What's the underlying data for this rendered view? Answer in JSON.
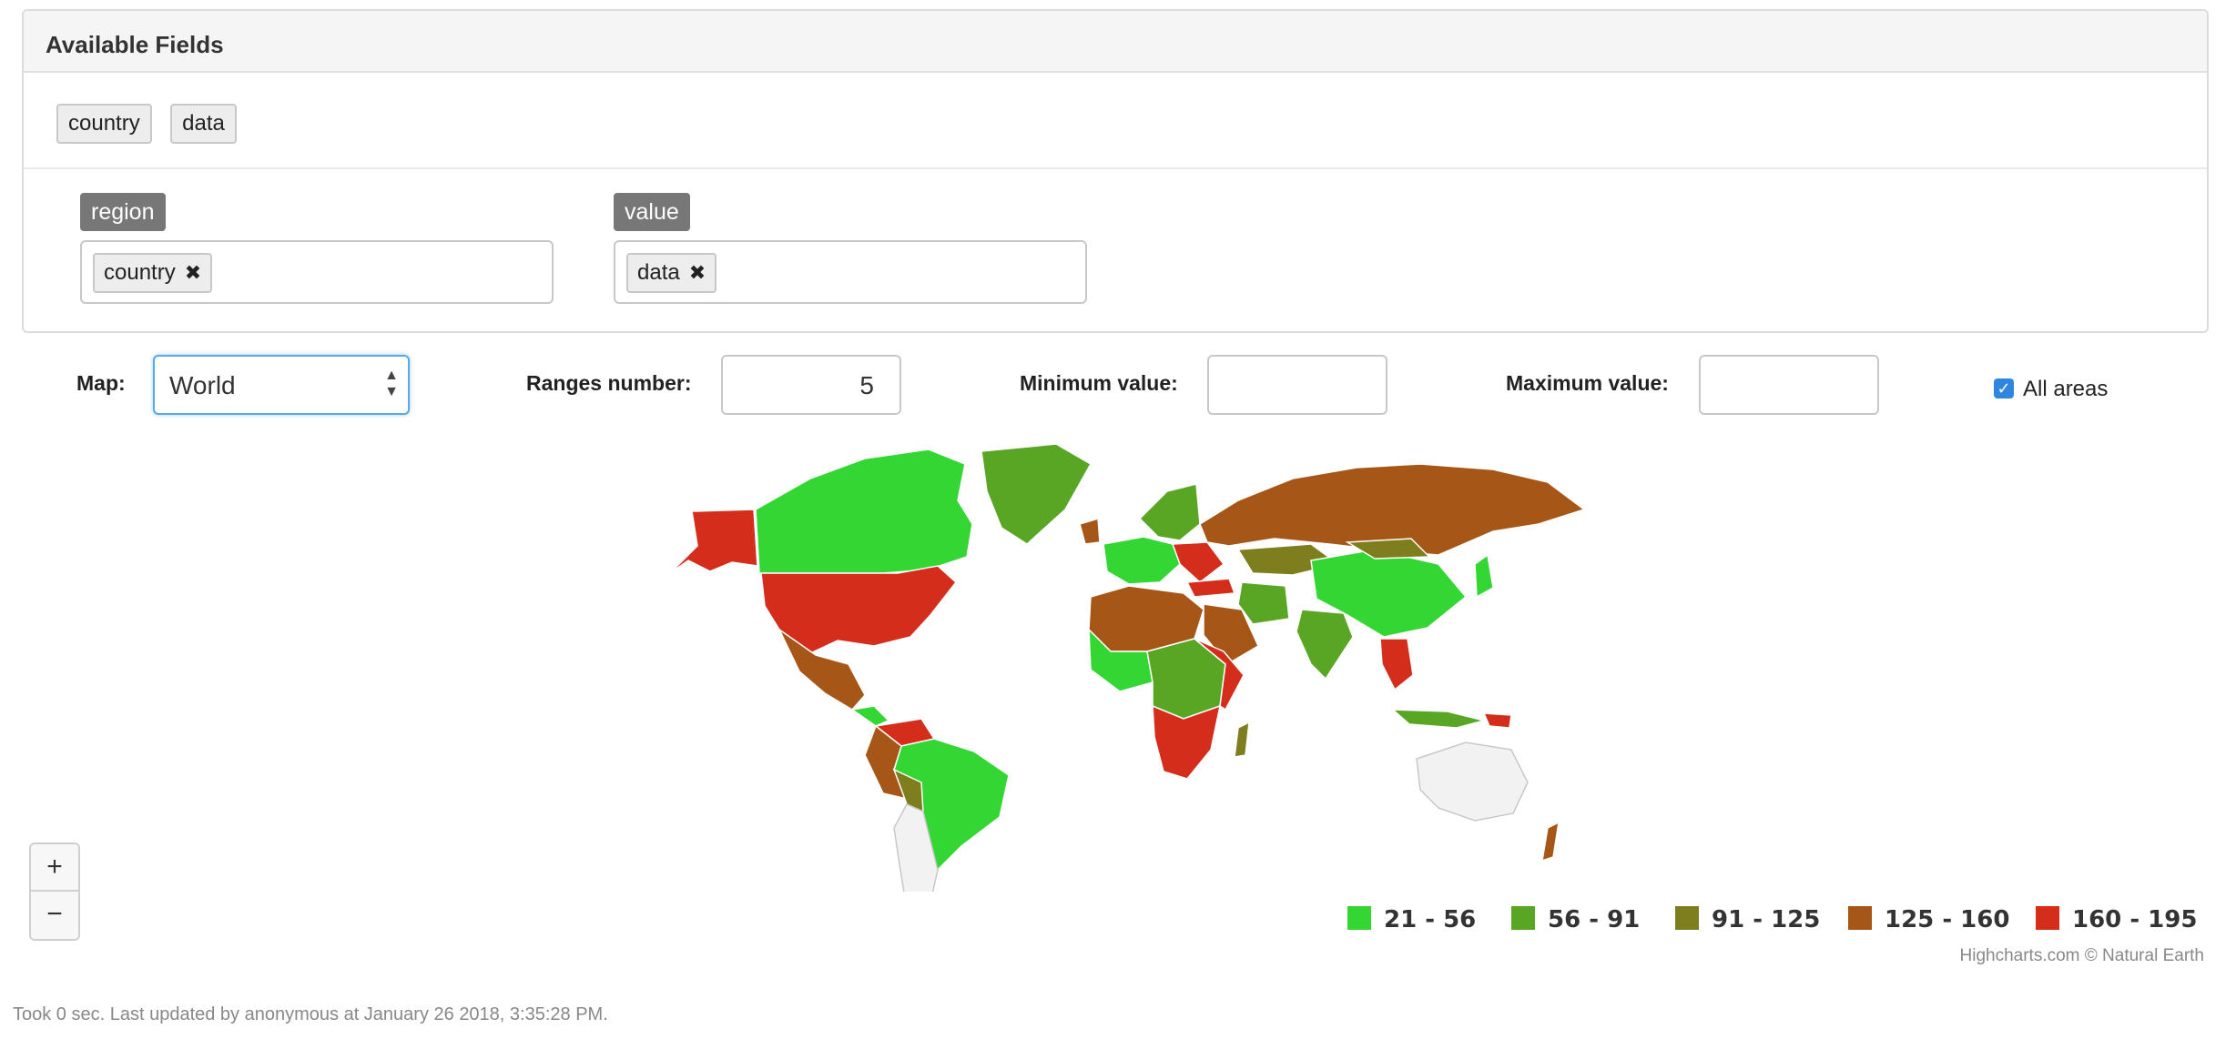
{
  "panel": {
    "title": "Available Fields",
    "fields": [
      "country",
      "data"
    ],
    "region": {
      "label": "region",
      "chip": "country"
    },
    "value": {
      "label": "value",
      "chip": "data"
    }
  },
  "controls": {
    "map_label": "Map:",
    "map_value": "World",
    "ranges_label": "Ranges number:",
    "ranges_value": "5",
    "min_label": "Minimum value:",
    "min_value": "",
    "max_label": "Maximum value:",
    "max_value": "",
    "all_areas_label": "All areas",
    "all_areas_checked": true
  },
  "zoom": {
    "in": "+",
    "out": "−"
  },
  "legend": [
    {
      "label": "21 - 56",
      "color": "#33d633"
    },
    {
      "label": "56 - 91",
      "color": "#58a623"
    },
    {
      "label": "91 - 125",
      "color": "#7e7e1e"
    },
    {
      "label": "125 - 160",
      "color": "#a65616"
    },
    {
      "label": "160 - 195",
      "color": "#d52d1b"
    }
  ],
  "credits": "Highcharts.com © Natural Earth",
  "footer": "Took 0 sec. Last updated by anonymous at January 26 2018, 3:35:28 PM."
}
